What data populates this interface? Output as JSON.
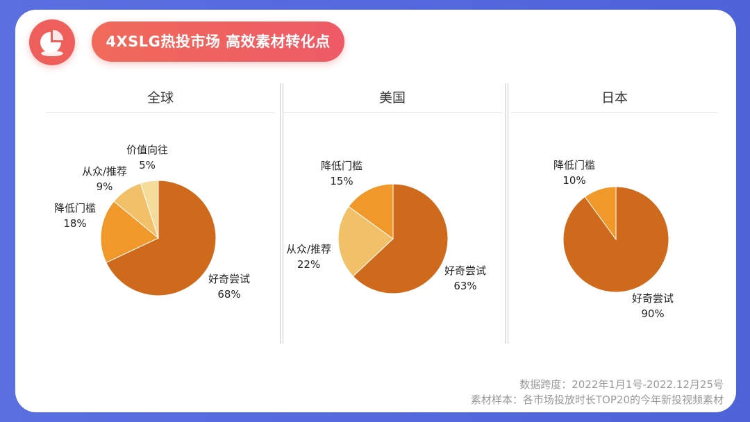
{
  "header": {
    "title": "4XSLG热投市场  高效素材转化点",
    "logo_icon": "pie-chart-icon"
  },
  "colors": {
    "background": "#5068dc",
    "accent": "#ee5f5c",
    "slices": {
      "好奇尝试": "#cf6a1c",
      "降低门槛": "#f0992a",
      "从众/推荐": "#f3c06a",
      "价值向往": "#f6dc9a"
    }
  },
  "chart_data": [
    {
      "type": "pie",
      "title": "全球",
      "slices": [
        {
          "label": "好奇尝试",
          "value": 68,
          "value_label": "68%"
        },
        {
          "label": "降低门槛",
          "value": 18,
          "value_label": "18%"
        },
        {
          "label": "从众/推荐",
          "value": 9,
          "value_label": "9%"
        },
        {
          "label": "价值向往",
          "value": 5,
          "value_label": "5%"
        }
      ]
    },
    {
      "type": "pie",
      "title": "美国",
      "slices": [
        {
          "label": "好奇尝试",
          "value": 63,
          "value_label": "63%"
        },
        {
          "label": "从众/推荐",
          "value": 22,
          "value_label": "22%"
        },
        {
          "label": "降低门槛",
          "value": 15,
          "value_label": "15%"
        }
      ]
    },
    {
      "type": "pie",
      "title": "日本",
      "slices": [
        {
          "label": "好奇尝试",
          "value": 90,
          "value_label": "90%"
        },
        {
          "label": "降低门槛",
          "value": 10,
          "value_label": "10%"
        }
      ]
    }
  ],
  "footer": {
    "line1": "数据跨度：2022年1月1号-2022.12月25号",
    "line2": "素材样本：各市场投放时长TOP20的今年新投视频素材"
  }
}
